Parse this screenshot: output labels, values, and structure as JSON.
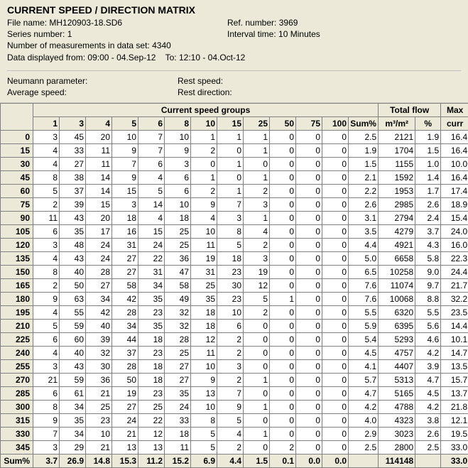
{
  "header": {
    "title": "CURRENT SPEED / DIRECTION MATRIX",
    "file_label": "File name:",
    "file_value": "MH120903-18.SD6",
    "ref_label": "Ref. number:",
    "ref_value": "3969",
    "series_label": "Series number:",
    "series_value": "1",
    "interval_label": "Interval time:",
    "interval_value": "10 Minutes",
    "num_meas_label": "Number of measurements in data set:",
    "num_meas_value": "4340",
    "displayed_label": "Data displayed from:",
    "displayed_from": "09:00 - 04.Sep-12",
    "displayed_to_label": "To:",
    "displayed_to": "12:10 - 04.Oct-12"
  },
  "params": {
    "neumann_label": "Neumann parameter:",
    "rest_speed_label": "Rest speed:",
    "avg_speed_label": "Average speed:",
    "rest_dir_label": "Rest direction:"
  },
  "table": {
    "group_header_speed": "Current speed groups",
    "group_header_flow": "Total flow",
    "group_header_max": "Max",
    "speed_cols": [
      "1",
      "3",
      "4",
      "5",
      "6",
      "8",
      "10",
      "15",
      "25",
      "50",
      "75",
      "100"
    ],
    "sum_col_label": "Sum%",
    "flow_cols": [
      "m³/m²",
      "%"
    ],
    "max_col_label": "curr",
    "rows": [
      [
        "0",
        [
          "3",
          "45",
          "20",
          "10",
          "7",
          "10",
          "1",
          "1",
          "1",
          "0",
          "0",
          "0"
        ],
        "2.5",
        "2121",
        "1.9",
        "16.4"
      ],
      [
        "15",
        [
          "4",
          "33",
          "11",
          "9",
          "7",
          "9",
          "2",
          "0",
          "1",
          "0",
          "0",
          "0"
        ],
        "1.9",
        "1704",
        "1.5",
        "16.4"
      ],
      [
        "30",
        [
          "4",
          "27",
          "11",
          "7",
          "6",
          "3",
          "0",
          "1",
          "0",
          "0",
          "0",
          "0"
        ],
        "1.5",
        "1155",
        "1.0",
        "10.0"
      ],
      [
        "45",
        [
          "8",
          "38",
          "14",
          "9",
          "4",
          "6",
          "1",
          "0",
          "1",
          "0",
          "0",
          "0"
        ],
        "2.1",
        "1592",
        "1.4",
        "16.4"
      ],
      [
        "60",
        [
          "5",
          "37",
          "14",
          "15",
          "5",
          "6",
          "2",
          "1",
          "2",
          "0",
          "0",
          "0"
        ],
        "2.2",
        "1953",
        "1.7",
        "17.4"
      ],
      [
        "75",
        [
          "2",
          "39",
          "15",
          "3",
          "14",
          "10",
          "9",
          "7",
          "3",
          "0",
          "0",
          "0"
        ],
        "2.6",
        "2985",
        "2.6",
        "18.9"
      ],
      [
        "90",
        [
          "11",
          "43",
          "20",
          "18",
          "4",
          "18",
          "4",
          "3",
          "1",
          "0",
          "0",
          "0"
        ],
        "3.1",
        "2794",
        "2.4",
        "15.4"
      ],
      [
        "105",
        [
          "6",
          "35",
          "17",
          "16",
          "15",
          "25",
          "10",
          "8",
          "4",
          "0",
          "0",
          "0"
        ],
        "3.5",
        "4279",
        "3.7",
        "24.0"
      ],
      [
        "120",
        [
          "3",
          "48",
          "24",
          "31",
          "24",
          "25",
          "11",
          "5",
          "2",
          "0",
          "0",
          "0"
        ],
        "4.4",
        "4921",
        "4.3",
        "16.0"
      ],
      [
        "135",
        [
          "4",
          "43",
          "24",
          "27",
          "22",
          "36",
          "19",
          "18",
          "3",
          "0",
          "0",
          "0"
        ],
        "5.0",
        "6658",
        "5.8",
        "22.3"
      ],
      [
        "150",
        [
          "8",
          "40",
          "28",
          "27",
          "31",
          "47",
          "31",
          "23",
          "19",
          "0",
          "0",
          "0"
        ],
        "6.5",
        "10258",
        "9.0",
        "24.4"
      ],
      [
        "165",
        [
          "2",
          "50",
          "27",
          "58",
          "34",
          "58",
          "25",
          "30",
          "12",
          "0",
          "0",
          "0"
        ],
        "7.6",
        "11074",
        "9.7",
        "21.7"
      ],
      [
        "180",
        [
          "9",
          "63",
          "34",
          "42",
          "35",
          "49",
          "35",
          "23",
          "5",
          "1",
          "0",
          "0"
        ],
        "7.6",
        "10068",
        "8.8",
        "32.2"
      ],
      [
        "195",
        [
          "4",
          "55",
          "42",
          "28",
          "23",
          "32",
          "18",
          "10",
          "2",
          "0",
          "0",
          "0"
        ],
        "5.5",
        "6320",
        "5.5",
        "23.5"
      ],
      [
        "210",
        [
          "5",
          "59",
          "40",
          "34",
          "35",
          "32",
          "18",
          "6",
          "0",
          "0",
          "0",
          "0"
        ],
        "5.9",
        "6395",
        "5.6",
        "14.4"
      ],
      [
        "225",
        [
          "6",
          "60",
          "39",
          "44",
          "18",
          "28",
          "12",
          "2",
          "0",
          "0",
          "0",
          "0"
        ],
        "5.4",
        "5293",
        "4.6",
        "10.1"
      ],
      [
        "240",
        [
          "4",
          "40",
          "32",
          "37",
          "23",
          "25",
          "11",
          "2",
          "0",
          "0",
          "0",
          "0"
        ],
        "4.5",
        "4757",
        "4.2",
        "14.7"
      ],
      [
        "255",
        [
          "3",
          "43",
          "30",
          "28",
          "18",
          "27",
          "10",
          "3",
          "0",
          "0",
          "0",
          "0"
        ],
        "4.1",
        "4407",
        "3.9",
        "13.5"
      ],
      [
        "270",
        [
          "21",
          "59",
          "36",
          "50",
          "18",
          "27",
          "9",
          "2",
          "1",
          "0",
          "0",
          "0"
        ],
        "5.7",
        "5313",
        "4.7",
        "15.7"
      ],
      [
        "285",
        [
          "6",
          "61",
          "21",
          "19",
          "23",
          "35",
          "13",
          "7",
          "0",
          "0",
          "0",
          "0"
        ],
        "4.7",
        "5165",
        "4.5",
        "13.7"
      ],
      [
        "300",
        [
          "8",
          "34",
          "25",
          "27",
          "25",
          "24",
          "10",
          "9",
          "1",
          "0",
          "0",
          "0"
        ],
        "4.2",
        "4788",
        "4.2",
        "21.8"
      ],
      [
        "315",
        [
          "9",
          "35",
          "23",
          "24",
          "22",
          "33",
          "8",
          "5",
          "0",
          "0",
          "0",
          "0"
        ],
        "4.0",
        "4323",
        "3.8",
        "12.1"
      ],
      [
        "330",
        [
          "7",
          "34",
          "10",
          "21",
          "12",
          "18",
          "5",
          "4",
          "1",
          "0",
          "0",
          "0"
        ],
        "2.9",
        "3023",
        "2.6",
        "19.5"
      ],
      [
        "345",
        [
          "3",
          "29",
          "21",
          "13",
          "13",
          "11",
          "5",
          "2",
          "0",
          "2",
          "0",
          "0"
        ],
        "2.5",
        "2800",
        "2.5",
        "33.0"
      ]
    ],
    "sum_row": {
      "label": "Sum%",
      "speed": [
        "3.7",
        "26.9",
        "14.8",
        "15.3",
        "11.2",
        "15.2",
        "6.9",
        "4.4",
        "1.5",
        "0.1",
        "0.0",
        "0.0"
      ],
      "sum": "",
      "m3": "114148",
      "pct": "",
      "max": "33.0"
    }
  },
  "style": {
    "header_bg": "#ece9d8",
    "border_color": "#808080",
    "font_size_pt": 9,
    "title_font_size_pt": 11
  }
}
